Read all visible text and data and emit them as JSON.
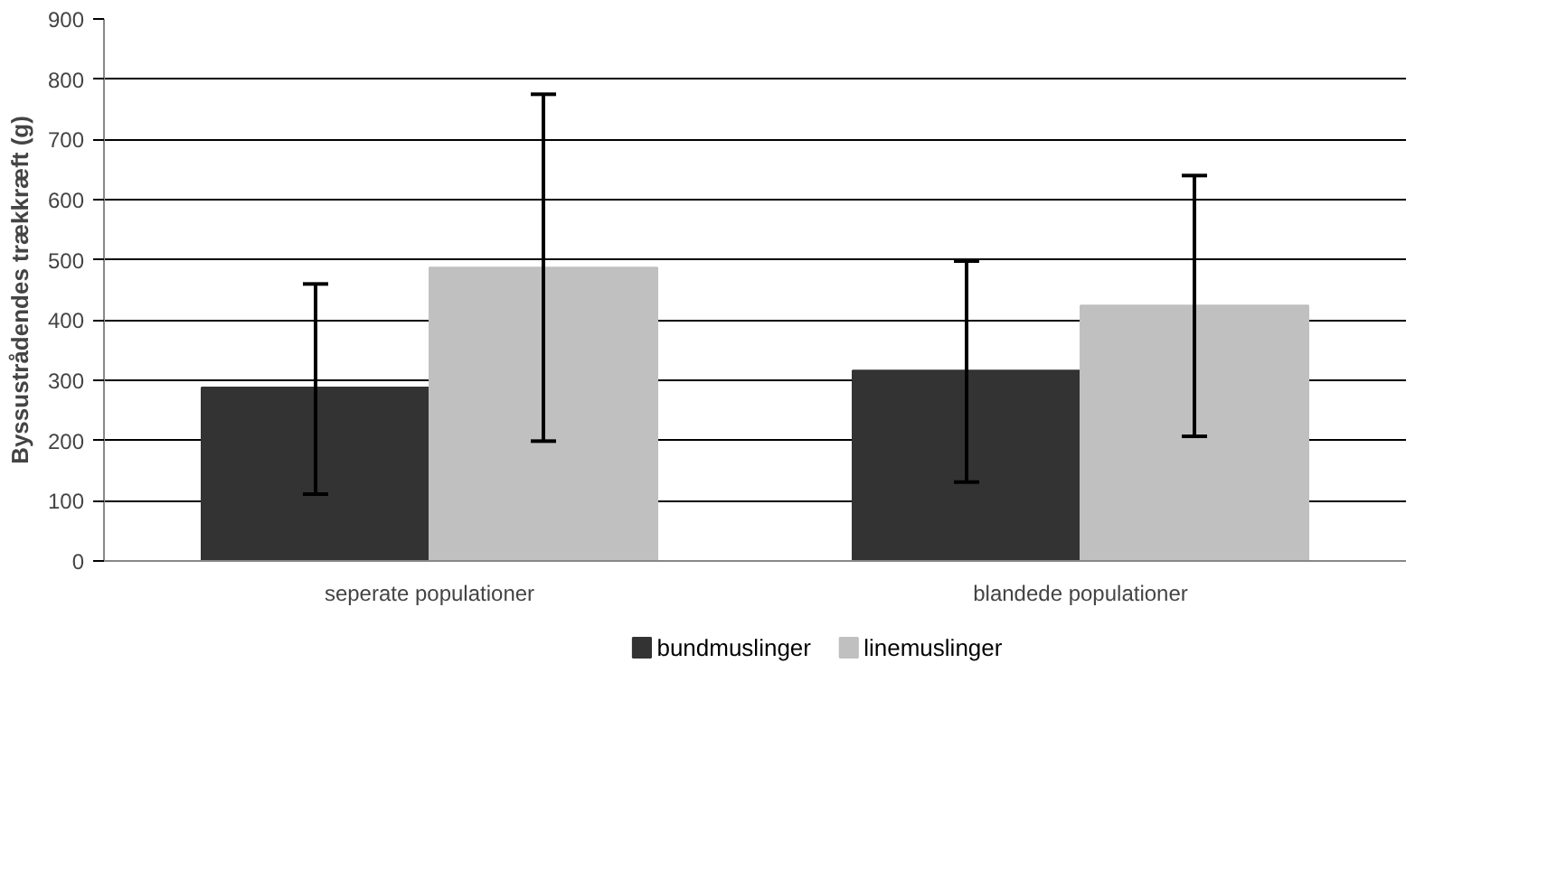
{
  "chart_data": {
    "type": "bar",
    "ylabel": "Byssustrådendes trækkræft (g)",
    "categories": [
      "seperate populationer",
      "blandede populationer"
    ],
    "series": [
      {
        "name": "bundmuslinger",
        "color": "#333333",
        "values": [
          288,
          316
        ],
        "errors": [
          [
            111,
            460
          ],
          [
            131,
            498
          ]
        ]
      },
      {
        "name": "linemuslinger",
        "color": "#c0c0c0",
        "values": [
          487,
          424
        ],
        "errors": [
          [
            199,
            775
          ],
          [
            207,
            640
          ]
        ]
      }
    ],
    "ylim": [
      0,
      900
    ],
    "yticks": [
      0,
      100,
      200,
      300,
      400,
      500,
      600,
      700,
      800,
      900
    ],
    "grid": "y",
    "legend": "bottom"
  }
}
